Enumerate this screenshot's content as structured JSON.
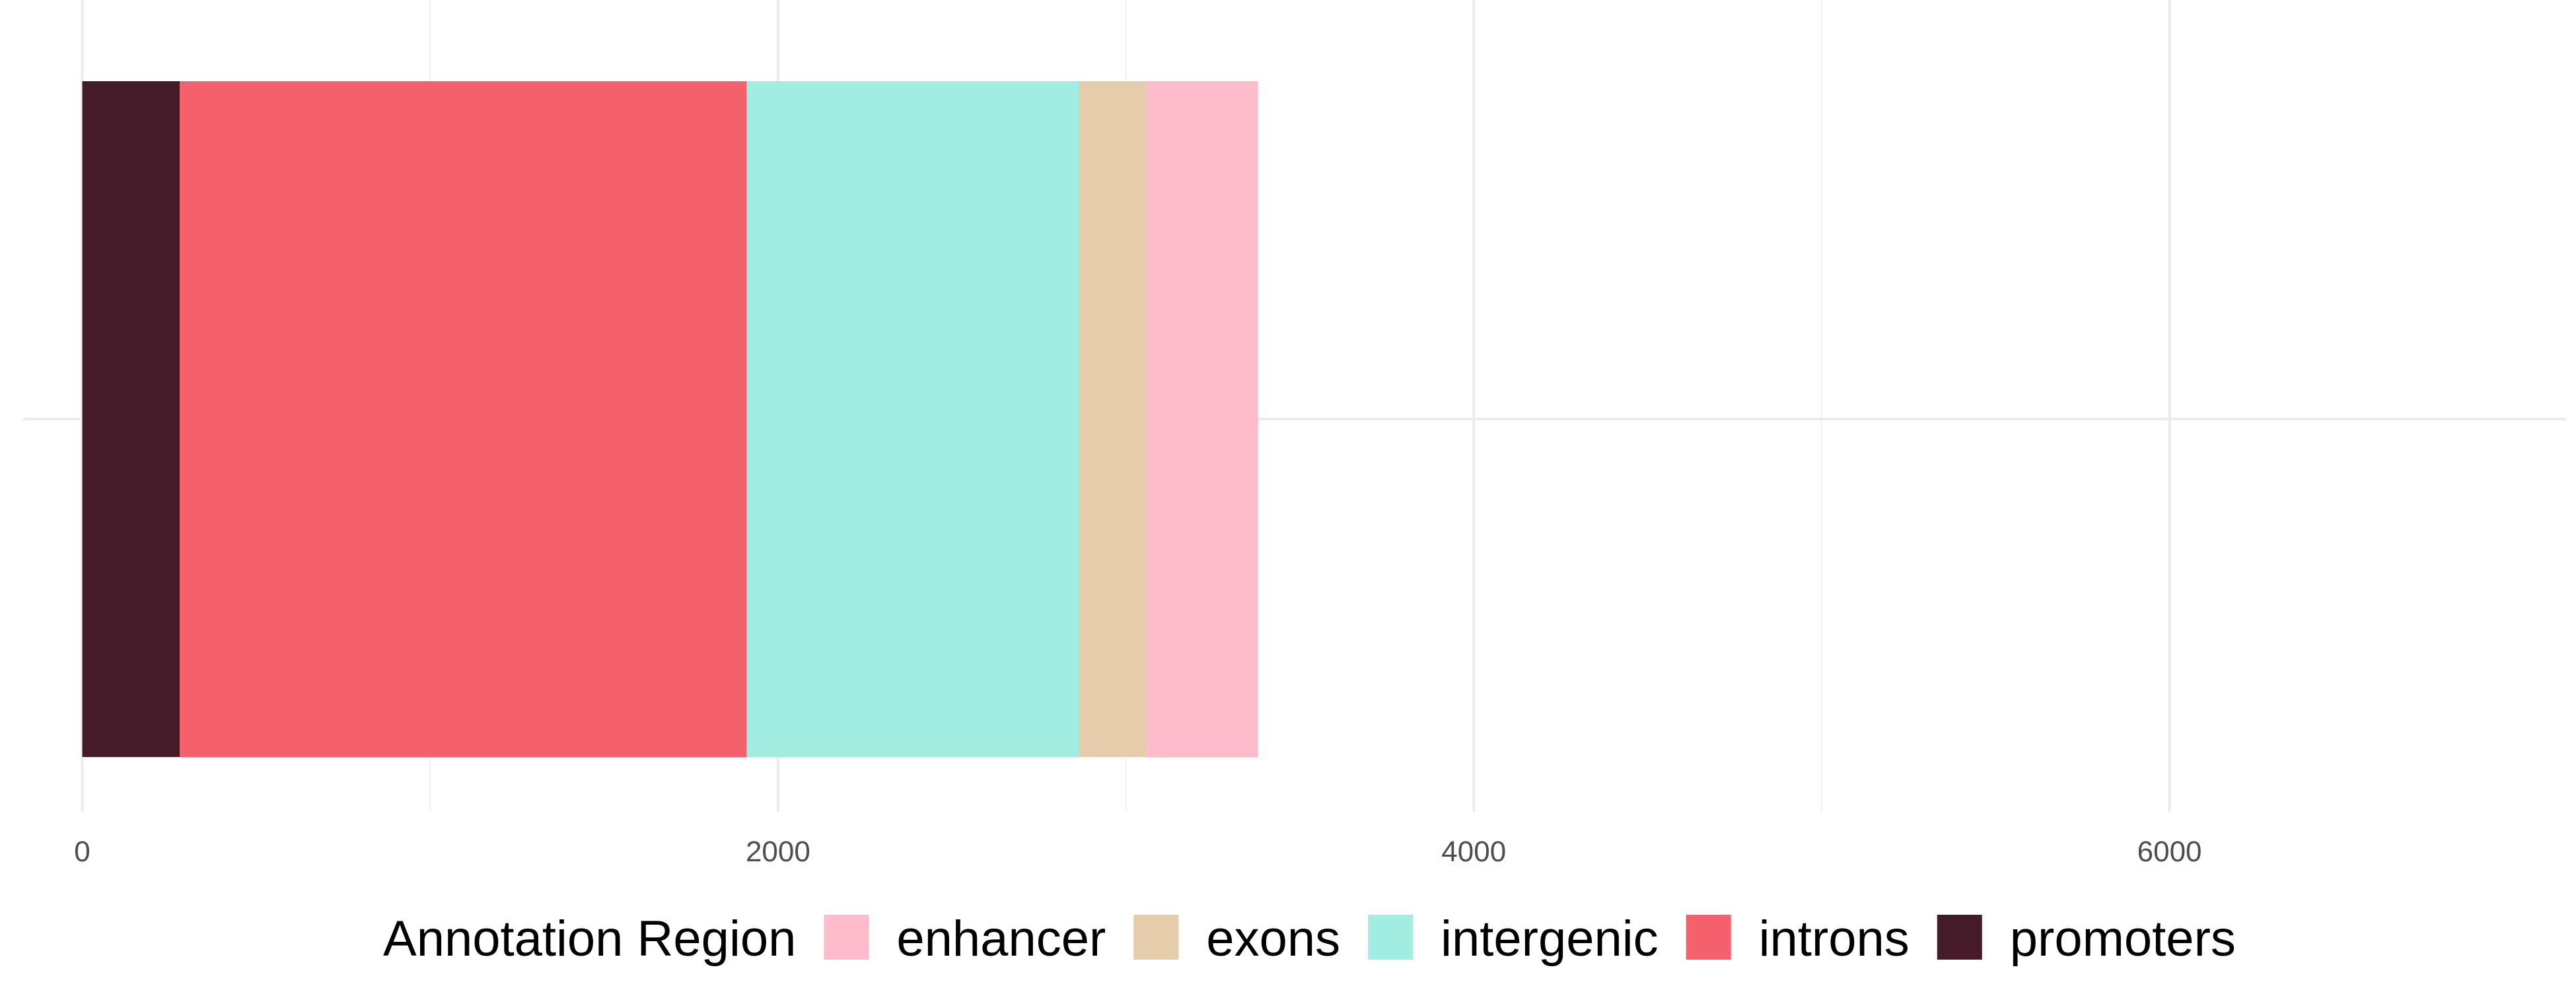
{
  "chart_data": {
    "type": "bar",
    "orientation": "horizontal",
    "stacked": true,
    "categories": [
      ""
    ],
    "series": [
      {
        "name": "promoters",
        "values": [
          280
        ],
        "color": "#461b29"
      },
      {
        "name": "introns",
        "values": [
          1630
        ],
        "color": "#f4616d"
      },
      {
        "name": "intergenic",
        "values": [
          955
        ],
        "color": "#a2ede2"
      },
      {
        "name": "exons",
        "values": [
          195
        ],
        "color": "#e5ccaa"
      },
      {
        "name": "enhancer",
        "values": [
          320
        ],
        "color": "#fdbccb"
      }
    ],
    "title": "",
    "xlabel": "",
    "ylabel": "",
    "xlim": [
      -170,
      7140
    ],
    "xticks": [
      0,
      2000,
      4000,
      6000
    ],
    "xtick_labels": [
      "0",
      "2000",
      "4000",
      "6000"
    ],
    "grid": true,
    "legend": {
      "title": "Annotation Region",
      "position": "bottom",
      "entries": [
        {
          "label": "enhancer",
          "color": "#fdbccb"
        },
        {
          "label": "exons",
          "color": "#e5ccaa"
        },
        {
          "label": "intergenic",
          "color": "#a2ede2"
        },
        {
          "label": "introns",
          "color": "#f4616d"
        },
        {
          "label": "promoters",
          "color": "#461b29"
        }
      ]
    }
  }
}
